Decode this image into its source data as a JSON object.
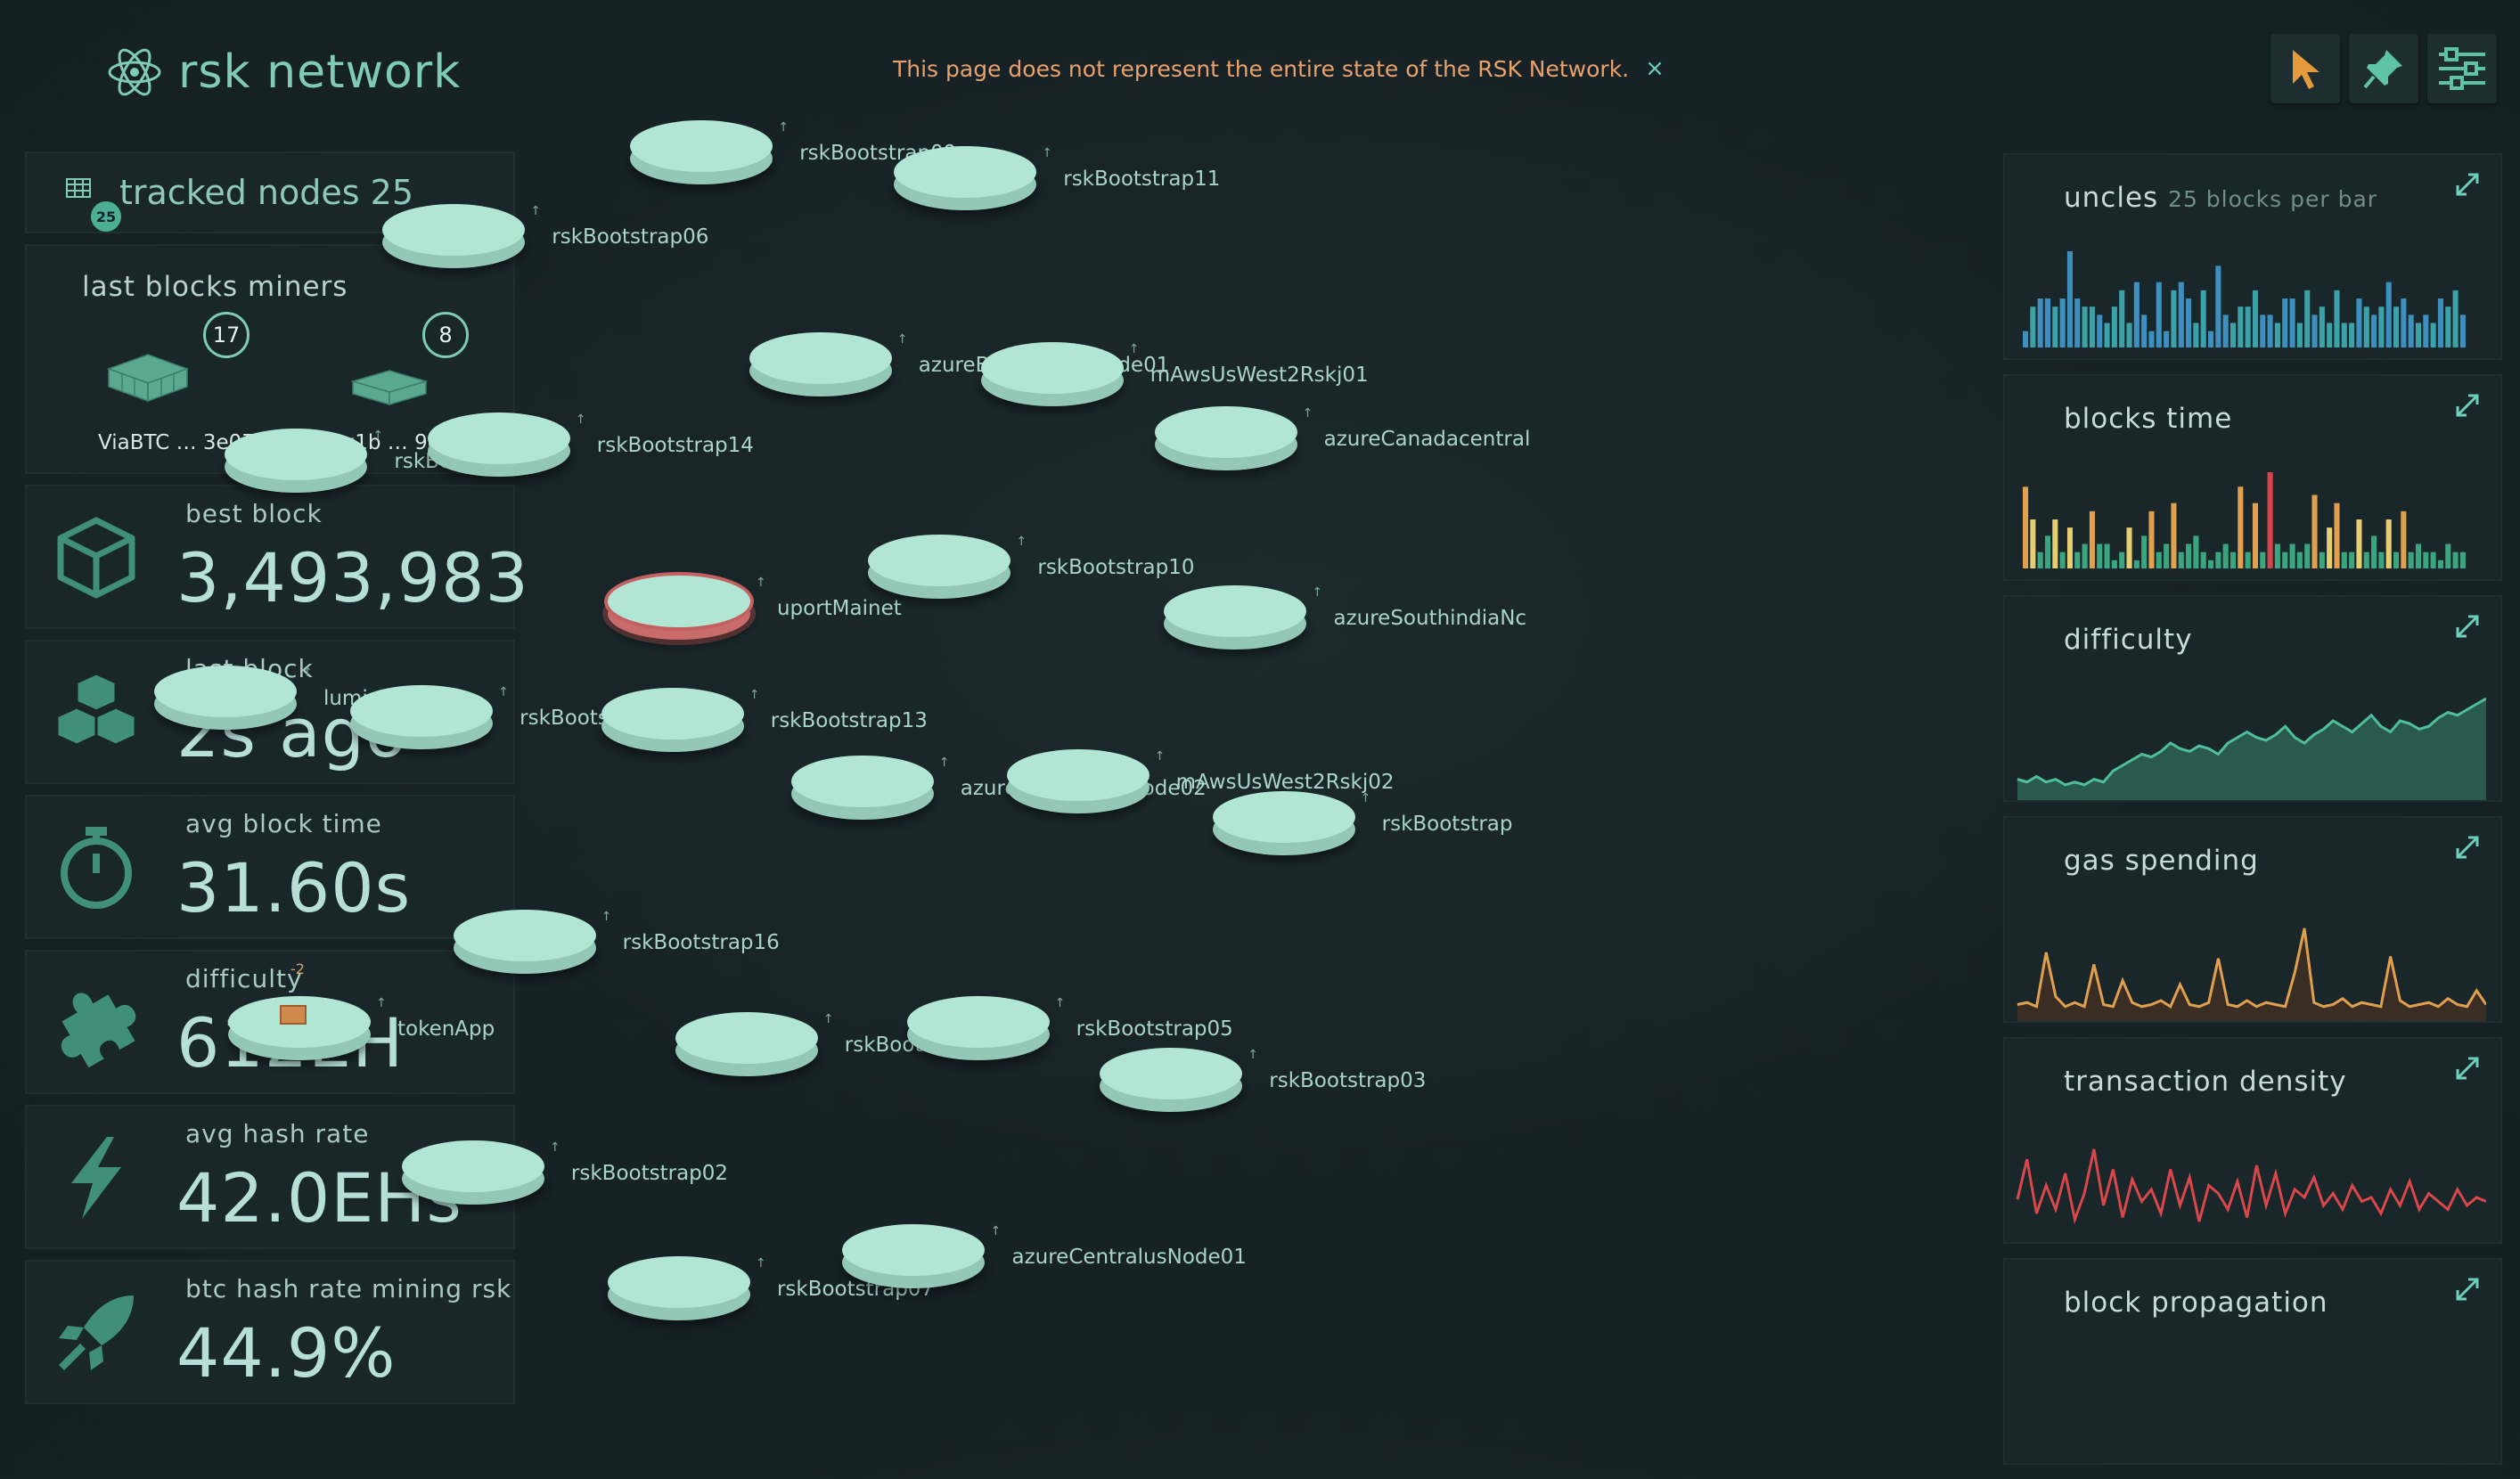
{
  "header": {
    "app_title": "rsk network",
    "notice": "This page does not represent the entire state of the RSK Network.",
    "close_symbol": "×",
    "tools": [
      "pointer-icon",
      "pin-icon",
      "settings-sliders-icon"
    ]
  },
  "tracked": {
    "label": "tracked nodes 25",
    "badge": "25"
  },
  "miners": {
    "label": "last blocks miners",
    "items": [
      {
        "name": "ViaBTC … 3e07",
        "count": "17"
      },
      {
        "name": "0x1b … 9ebd",
        "count": "8"
      }
    ]
  },
  "stats": [
    {
      "label": "best block",
      "value": "3,493,983",
      "icon": "cube-icon"
    },
    {
      "label": "last block",
      "value": "2s ago",
      "icon": "blocks-icon"
    },
    {
      "label": "avg block time",
      "value": "31.60s",
      "icon": "stopwatch-icon"
    },
    {
      "label": "difficulty",
      "value": "612EH",
      "icon": "puzzle-icon"
    },
    {
      "label": "avg hash rate",
      "value": "42.0EHs",
      "icon": "lightning-icon"
    },
    {
      "label": "btc hash rate mining rsk",
      "value": "44.9%",
      "icon": "rocket-icon"
    }
  ],
  "charts": {
    "uncles": {
      "label": "uncles",
      "sub": "25 blocks per bar"
    },
    "blocks_time": {
      "label": "blocks time"
    },
    "difficulty": {
      "label": "difficulty"
    },
    "gas_spending": {
      "label": "gas spending"
    },
    "transaction_density": {
      "label": "transaction density"
    },
    "block_propagation": {
      "label": "block propagation"
    }
  },
  "chart_data": [
    {
      "type": "bar",
      "title": "uncles",
      "values": [
        2,
        5,
        6,
        6,
        5,
        6,
        12,
        6,
        5,
        5,
        4,
        3,
        5,
        7,
        3,
        8,
        4,
        2,
        8,
        2,
        7,
        8,
        6,
        3,
        7,
        2,
        10,
        4,
        3,
        5,
        5,
        7,
        4,
        4,
        3,
        6,
        6,
        3,
        7,
        4,
        5,
        3,
        7,
        3,
        3,
        6,
        5,
        4,
        5,
        8,
        5,
        6,
        4,
        3,
        4,
        3,
        6,
        5,
        7,
        4
      ]
    },
    {
      "type": "bar",
      "title": "blocks time",
      "values": [
        10,
        6,
        2,
        4,
        6,
        2,
        5,
        2,
        3,
        7,
        3,
        3,
        1,
        2,
        5,
        1,
        4,
        7,
        2,
        3,
        8,
        2,
        3,
        4,
        2,
        1,
        2,
        3,
        2,
        10,
        2,
        8,
        2,
        12,
        3,
        2,
        3,
        2,
        3,
        9,
        2,
        5,
        8,
        2,
        2,
        6,
        2,
        4,
        2,
        6,
        2,
        7,
        2,
        3,
        2,
        2,
        1,
        3,
        2,
        2
      ]
    },
    {
      "type": "area",
      "title": "difficulty",
      "values": [
        3,
        2,
        4,
        2,
        3,
        1,
        2,
        1,
        3,
        2,
        6,
        8,
        10,
        12,
        11,
        13,
        16,
        14,
        13,
        15,
        14,
        12,
        16,
        18,
        20,
        18,
        17,
        19,
        22,
        18,
        16,
        19,
        21,
        24,
        22,
        20,
        23,
        26,
        22,
        20,
        24,
        23,
        21,
        22,
        25,
        27,
        26,
        28,
        30,
        32
      ]
    },
    {
      "type": "line",
      "title": "gas spending",
      "values": [
        2,
        3,
        1,
        28,
        6,
        1,
        3,
        1,
        22,
        2,
        1,
        14,
        3,
        1,
        2,
        4,
        1,
        12,
        2,
        1,
        3,
        25,
        2,
        1,
        4,
        1,
        3,
        2,
        1,
        18,
        40,
        3,
        1,
        2,
        5,
        1,
        3,
        2,
        1,
        26,
        4,
        1,
        2,
        3,
        1,
        5,
        2,
        1,
        9,
        2
      ]
    },
    {
      "type": "line",
      "title": "transaction density",
      "values": [
        15,
        35,
        8,
        22,
        10,
        28,
        5,
        18,
        40,
        12,
        30,
        6,
        25,
        14,
        20,
        8,
        30,
        12,
        26,
        4,
        22,
        18,
        10,
        24,
        6,
        32,
        12,
        28,
        8,
        20,
        16,
        26,
        12,
        18,
        10,
        22,
        14,
        16,
        8,
        20,
        12,
        24,
        10,
        18,
        14,
        10,
        20,
        12,
        16,
        14
      ]
    },
    {
      "type": "line",
      "title": "block propagation",
      "values": []
    }
  ],
  "nodes": [
    {
      "name": "rskBootstrap09",
      "tick": "↑"
    },
    {
      "name": "rskBootstrap11",
      "tick": "↑"
    },
    {
      "name": "rskBootstrap06",
      "tick": "↑"
    },
    {
      "name": "azureBrazilsouthNode01",
      "tick": "↑"
    },
    {
      "name": "mAwsUsWest2Rskj01",
      "tick": "↑"
    },
    {
      "name": "rskBootstrap12",
      "tick": "↑"
    },
    {
      "name": "rskBootstrap14",
      "tick": "↑"
    },
    {
      "name": "azureCanadacentral",
      "tick": "↑"
    },
    {
      "name": "uportMainet",
      "tick": "↑"
    },
    {
      "name": "rskBootstrap10",
      "tick": "↑"
    },
    {
      "name": "azureSouthindiaNc",
      "tick": "↑"
    },
    {
      "name": "luminorpctest",
      "tick": "↑"
    },
    {
      "name": "rskBootstrap04",
      "tick": "↑"
    },
    {
      "name": "rskBootstrap13",
      "tick": "↑"
    },
    {
      "name": "azureSouthindiaNode02",
      "tick": "↑"
    },
    {
      "name": "mAwsUsWest2Rskj02",
      "tick": "↑"
    },
    {
      "name": "rskBootstrap",
      "tick": "↑"
    },
    {
      "name": "rskBootstrap16",
      "tick": "↑"
    },
    {
      "name": "tokenApp",
      "tick": "↑",
      "badge": "-2"
    },
    {
      "name": "rskBootstrap15",
      "tick": "↑"
    },
    {
      "name": "rskBootstrap05",
      "tick": "↑"
    },
    {
      "name": "rskBootstrap03",
      "tick": "↑"
    },
    {
      "name": "rskBootstrap02",
      "tick": "↑"
    },
    {
      "name": "rskBootstrap07",
      "tick": "↑"
    },
    {
      "name": "azureCentralusNode01",
      "tick": "↑"
    }
  ],
  "colors": {
    "accent": "#7fcab8",
    "warning": "#e8a26b",
    "node_top": "#b2e6d4",
    "node_side": "#93c8b6",
    "selected": "#c76b6b",
    "bar_blue": "#3d8fbf",
    "bar_green": "#3aa57f",
    "bar_orange": "#e0a04f",
    "bar_red": "#d9474b",
    "bar_yellow": "#e6cf73"
  }
}
